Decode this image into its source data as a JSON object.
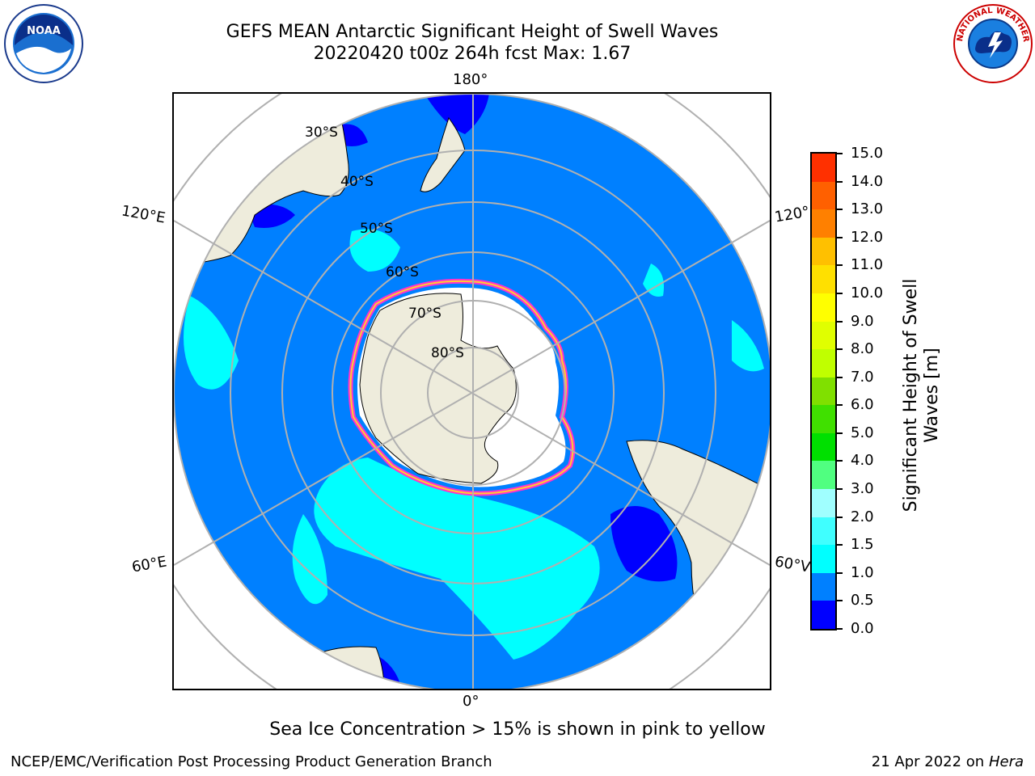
{
  "title": {
    "line1": "GEFS MEAN Antarctic Significant Height of Swell Waves",
    "line2": "20220420 t00z 264h fcst   Max: 1.67"
  },
  "logos": {
    "left": {
      "text": "NOAA",
      "icon": "noaa-logo"
    },
    "right": {
      "text": "NATIONAL WEATHER SERVICE",
      "icon": "nws-logo"
    }
  },
  "map": {
    "projection": "south-polar-stereographic",
    "longitude_labels": {
      "top": "180°",
      "upper_left": "120°E",
      "upper_right": "120°",
      "lower_left": "60°E",
      "lower_right": "60°V",
      "bottom": "0°"
    },
    "latitude_labels": [
      "30°S",
      "40°S",
      "50°S",
      "60°S",
      "70°S",
      "80°S"
    ],
    "colors": {
      "land": "#eeecdc",
      "ocean_low": "#0080ff",
      "ocean_min": "#0000ff",
      "swell_1_5": "#00ffff",
      "ice_edge_pink": "#ff33cc",
      "ice_edge_yellow": "#ffcc33",
      "grid": "#b0b0b0"
    }
  },
  "colorbar": {
    "label_line1": "Significant Height of Swell",
    "label_line2": "Waves [m]",
    "ticks": [
      "0.0",
      "0.5",
      "1.0",
      "1.5",
      "2.0",
      "3.0",
      "4.0",
      "5.0",
      "6.0",
      "7.0",
      "8.0",
      "9.0",
      "10.0",
      "11.0",
      "12.0",
      "13.0",
      "14.0",
      "15.0"
    ],
    "colors": [
      "#0000ff",
      "#0080ff",
      "#00ffff",
      "#40ffff",
      "#a0ffff",
      "#50ff80",
      "#00e000",
      "#40e000",
      "#80e000",
      "#c0ff00",
      "#e0ff00",
      "#ffff00",
      "#ffe000",
      "#ffc000",
      "#ff8000",
      "#ff6000",
      "#ff3000",
      "#ff0000"
    ]
  },
  "note": "Sea Ice Concentration > 15% is shown in pink to yellow",
  "footer": {
    "left": "NCEP/EMC/Verification Post Processing Product Generation Branch",
    "right_prefix": "21 Apr 2022 on ",
    "right_host": "Hera"
  }
}
